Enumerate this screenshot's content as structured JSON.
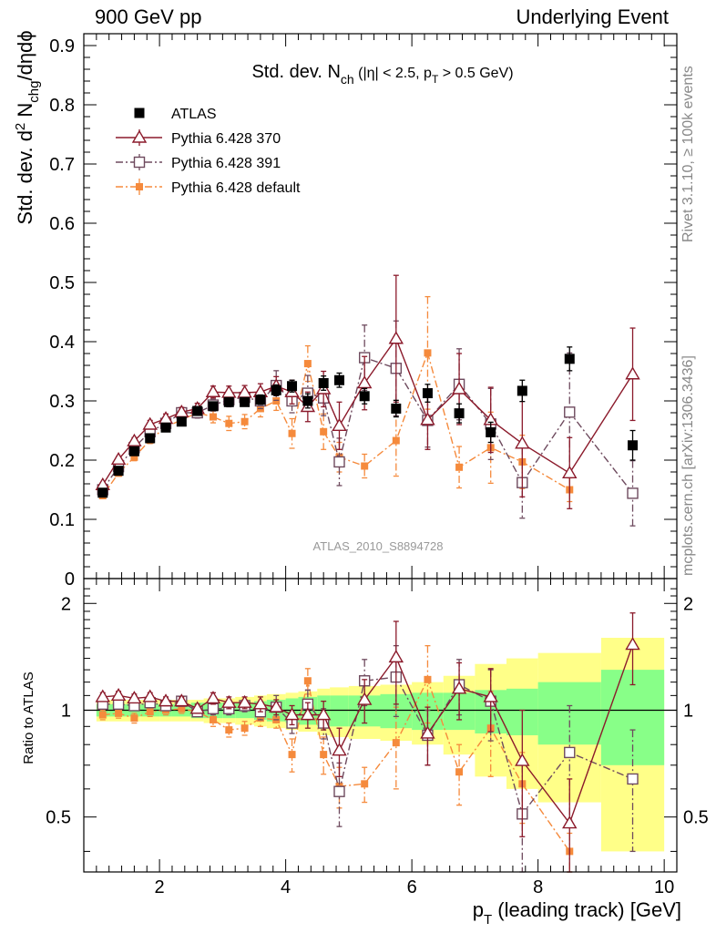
{
  "header": {
    "left": "900 GeV pp",
    "right": "Underlying Event"
  },
  "side_labels": {
    "rivet": "Rivet 3.1.10, ≥ 100k events",
    "mcplots": "mcplots.cern.ch [arXiv:1306.3436]"
  },
  "watermark": "ATLAS_2010_S8894728",
  "plot_title": {
    "main": "Std. dev. N",
    "sub": "ch",
    "rest1": " (|η| < 2.5, p",
    "sub2": "T",
    "rest2": " > 0.5 GeV)"
  },
  "ylabel_main": {
    "pre": "Std. dev. d",
    "sup": "2",
    "mid": " N",
    "sub": "chg",
    "post": "/dηdϕ"
  },
  "ylabel_ratio": "Ratio to ATLAS",
  "xlabel": {
    "pre": "p",
    "sub": "T",
    "post": " (leading track) [GeV]"
  },
  "colors": {
    "atlas": "#000000",
    "p370": "#8b1a2b",
    "p391": "#6e4a5e",
    "pdef": "#f58a3c",
    "band_outer": "#ffff88",
    "band_inner": "#88ff88"
  },
  "chart_data": [
    {
      "type": "scatter",
      "xlim": [
        0.8,
        10.2
      ],
      "ylim": [
        0,
        0.92
      ],
      "yticks": [
        "0",
        "0.1",
        "0.2",
        "0.3",
        "0.4",
        "0.5",
        "0.6",
        "0.7",
        "0.8",
        "0.9"
      ],
      "legend_position": "top-left",
      "x": [
        1.1,
        1.35,
        1.6,
        1.85,
        2.1,
        2.35,
        2.6,
        2.85,
        3.1,
        3.35,
        3.6,
        3.85,
        4.1,
        4.35,
        4.6,
        4.85,
        5.25,
        5.75,
        6.25,
        6.75,
        7.25,
        7.75,
        8.5,
        9.5
      ],
      "series": [
        {
          "name": "ATLAS",
          "color_key": "atlas",
          "marker": "filled-square",
          "line": "none",
          "values": [
            0.145,
            0.182,
            0.215,
            0.237,
            0.255,
            0.265,
            0.283,
            0.291,
            0.298,
            0.298,
            0.302,
            0.318,
            0.325,
            0.3,
            0.33,
            0.335,
            0.308,
            0.287,
            0.313,
            0.279,
            0.247,
            0.317,
            0.371,
            0.225
          ],
          "errors": [
            0.004,
            0.004,
            0.005,
            0.005,
            0.005,
            0.006,
            0.006,
            0.006,
            0.007,
            0.007,
            0.008,
            0.009,
            0.01,
            0.012,
            0.012,
            0.012,
            0.013,
            0.014,
            0.015,
            0.016,
            0.017,
            0.018,
            0.02,
            0.025
          ]
        },
        {
          "name": "Pythia 6.428 370",
          "color_key": "p370",
          "marker": "open-triangle",
          "line": "solid",
          "values": [
            0.158,
            0.201,
            0.232,
            0.26,
            0.27,
            0.281,
            0.287,
            0.315,
            0.314,
            0.314,
            0.315,
            0.325,
            0.315,
            0.29,
            0.32,
            0.258,
            0.33,
            0.405,
            0.268,
            0.32,
            0.268,
            0.228,
            0.178,
            0.345
          ],
          "errors": [
            0.004,
            0.005,
            0.006,
            0.007,
            0.008,
            0.008,
            0.009,
            0.01,
            0.011,
            0.012,
            0.014,
            0.016,
            0.02,
            0.025,
            0.03,
            0.04,
            0.045,
            0.107,
            0.05,
            0.06,
            0.055,
            0.09,
            0.06,
            0.078
          ]
        },
        {
          "name": "Pythia 6.428 391",
          "color_key": "p391",
          "marker": "open-square",
          "line": "dash-dot",
          "values": [
            0.15,
            0.189,
            0.221,
            0.248,
            0.262,
            0.28,
            0.28,
            0.293,
            0.302,
            0.306,
            0.3,
            0.326,
            0.3,
            0.313,
            0.305,
            0.197,
            0.373,
            0.355,
            0.267,
            0.328,
            0.261,
            0.162,
            0.281,
            0.144
          ],
          "errors": [
            0.004,
            0.005,
            0.006,
            0.007,
            0.008,
            0.008,
            0.009,
            0.01,
            0.012,
            0.012,
            0.013,
            0.025,
            0.02,
            0.03,
            0.03,
            0.04,
            0.055,
            0.08,
            0.045,
            0.06,
            0.06,
            0.06,
            0.1,
            0.055
          ]
        },
        {
          "name": "Pythia 6.428 default",
          "color_key": "pdef",
          "marker": "filled-square-small",
          "line": "dash-dot",
          "values": [
            0.14,
            0.178,
            0.205,
            0.234,
            0.256,
            0.268,
            0.28,
            0.273,
            0.262,
            0.265,
            0.287,
            0.3,
            0.245,
            0.363,
            0.248,
            0.205,
            0.19,
            0.233,
            0.381,
            0.188,
            0.221,
            0.197,
            0.15,
            null
          ],
          "errors": [
            0.004,
            0.005,
            0.006,
            0.006,
            0.007,
            0.008,
            0.008,
            0.01,
            0.012,
            0.012,
            0.014,
            0.016,
            0.025,
            0.03,
            0.03,
            0.025,
            0.02,
            0.06,
            0.095,
            0.035,
            0.06,
            0.045,
            0.02,
            null
          ]
        }
      ]
    },
    {
      "type": "scatter",
      "ylabel": "Ratio to ATLAS",
      "xlabel": "p_T (leading track) [GeV]",
      "xlim": [
        0.8,
        10.2
      ],
      "ylim": [
        0.35,
        2.35
      ],
      "yscale": "log",
      "yticks": [
        "0.5",
        "1",
        "2"
      ],
      "xticks": [
        "2",
        "4",
        "6",
        "8",
        "10"
      ],
      "reference_line": 1,
      "band_edges": [
        1.0,
        1.2,
        1.5,
        1.7,
        2.0,
        2.2,
        2.5,
        2.7,
        3.0,
        3.2,
        3.5,
        3.7,
        4.0,
        4.2,
        4.5,
        4.7,
        5.0,
        5.5,
        6.0,
        6.5,
        7.0,
        7.5,
        8.0,
        9.0,
        10.0
      ],
      "band_inner": [
        0.04,
        0.04,
        0.04,
        0.04,
        0.04,
        0.04,
        0.05,
        0.05,
        0.05,
        0.05,
        0.06,
        0.07,
        0.08,
        0.09,
        0.1,
        0.1,
        0.1,
        0.11,
        0.12,
        0.12,
        0.14,
        0.15,
        0.2,
        0.3
      ],
      "band_outer": [
        0.07,
        0.07,
        0.07,
        0.07,
        0.07,
        0.07,
        0.07,
        0.08,
        0.08,
        0.09,
        0.1,
        0.11,
        0.12,
        0.13,
        0.15,
        0.16,
        0.17,
        0.18,
        0.2,
        0.25,
        0.35,
        0.4,
        0.45,
        0.6
      ],
      "series": [
        {
          "name": "Pythia 6.428 370",
          "color_key": "p370",
          "marker": "open-triangle",
          "line": "solid",
          "values": [
            1.09,
            1.1,
            1.08,
            1.09,
            1.06,
            1.06,
            1.01,
            1.08,
            1.05,
            1.05,
            1.04,
            1.02,
            0.97,
            0.97,
            0.97,
            0.77,
            1.07,
            1.41,
            0.86,
            1.15,
            1.09,
            0.72,
            0.48,
            1.53
          ],
          "errors": [
            0.03,
            0.03,
            0.03,
            0.03,
            0.03,
            0.03,
            0.03,
            0.04,
            0.04,
            0.04,
            0.05,
            0.05,
            0.06,
            0.08,
            0.09,
            0.12,
            0.15,
            0.37,
            0.16,
            0.21,
            0.22,
            0.28,
            0.16,
            0.35
          ]
        },
        {
          "name": "Pythia 6.428 391",
          "color_key": "p391",
          "marker": "open-square",
          "line": "dash-dot",
          "values": [
            1.04,
            1.04,
            1.03,
            1.05,
            1.03,
            1.06,
            0.99,
            1.01,
            1.01,
            1.03,
            0.99,
            1.02,
            0.92,
            1.04,
            0.92,
            0.59,
            1.21,
            1.24,
            0.85,
            1.18,
            1.06,
            0.51,
            0.76,
            0.64
          ],
          "errors": [
            0.03,
            0.03,
            0.03,
            0.03,
            0.03,
            0.03,
            0.03,
            0.04,
            0.04,
            0.04,
            0.05,
            0.08,
            0.06,
            0.1,
            0.09,
            0.12,
            0.18,
            0.28,
            0.15,
            0.21,
            0.24,
            0.19,
            0.27,
            0.24
          ]
        },
        {
          "name": "Pythia 6.428 default",
          "color_key": "pdef",
          "marker": "filled-square-small",
          "line": "dash-dot",
          "values": [
            0.97,
            0.98,
            0.95,
            0.99,
            1.0,
            1.01,
            0.99,
            0.94,
            0.88,
            0.89,
            0.95,
            0.94,
            0.75,
            1.21,
            0.75,
            0.61,
            0.62,
            0.81,
            1.22,
            0.67,
            0.89,
            0.62,
            0.4,
            null
          ],
          "errors": [
            0.03,
            0.03,
            0.03,
            0.03,
            0.03,
            0.03,
            0.03,
            0.04,
            0.04,
            0.04,
            0.05,
            0.05,
            0.08,
            0.1,
            0.09,
            0.08,
            0.07,
            0.21,
            0.3,
            0.13,
            0.24,
            0.14,
            0.05,
            null
          ]
        }
      ]
    }
  ]
}
